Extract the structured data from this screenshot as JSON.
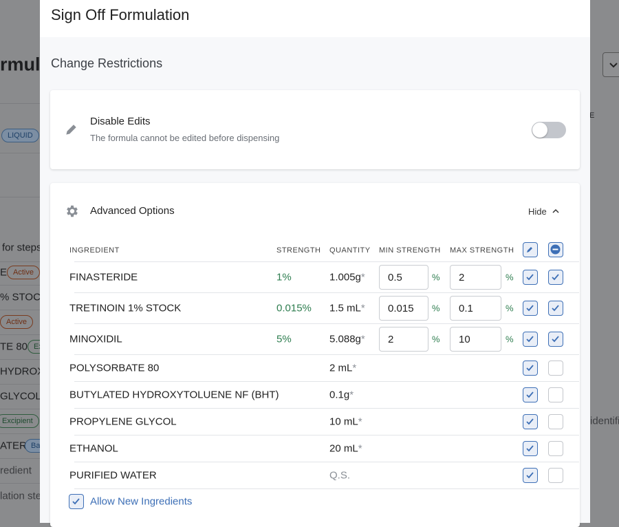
{
  "background": {
    "fragments": [
      {
        "text": "rmul",
        "kind": "heading"
      },
      {
        "text": "LIQUID",
        "kind": "badge-blue"
      },
      {
        "text": "for steps",
        "kind": "text"
      },
      {
        "text": "E",
        "kind": "text"
      },
      {
        "text": "Active",
        "kind": "badge-orange"
      },
      {
        "text": "% STOCK",
        "kind": "text"
      },
      {
        "text": "Active",
        "kind": "badge-orange"
      },
      {
        "text": "TE 80",
        "kind": "text"
      },
      {
        "text": "Ex",
        "kind": "badge-green"
      },
      {
        "text": "HYDROXY",
        "kind": "text"
      },
      {
        "text": "GLYCOL",
        "kind": "text"
      },
      {
        "text": "Excipient",
        "kind": "badge-green"
      },
      {
        "text": "ATER",
        "kind": "text"
      },
      {
        "text": "Ba",
        "kind": "badge-blue"
      },
      {
        "text": "redient",
        "kind": "muted"
      },
      {
        "text": "lation ste",
        "kind": "muted"
      },
      {
        "text": "E",
        "kind": "small"
      },
      {
        "text": "identifi",
        "kind": "muted"
      }
    ]
  },
  "modal": {
    "title": "Sign Off Formulation",
    "section_title": "Change Restrictions",
    "disable_edits": {
      "title": "Disable Edits",
      "description": "The formula cannot be edited before dispensing",
      "enabled": false
    },
    "advanced": {
      "title": "Advanced Options",
      "toggle": "Hide",
      "expanded": true
    },
    "table": {
      "headers": [
        "INGREDIENT",
        "STRENGTH",
        "QUANTITY",
        "MIN STRENGTH",
        "MAX STRENGTH"
      ],
      "required_mark": "*",
      "percent_sign": "%",
      "rows": [
        {
          "name": "FINASTERIDE",
          "strength": "1%",
          "quantity": "1.005g",
          "required": true,
          "min": "0.5",
          "max": "2",
          "edit": true,
          "remove": true
        },
        {
          "name": "TRETINOIN 1% STOCK",
          "strength": "0.015%",
          "quantity": "1.5 mL",
          "required": true,
          "min": "0.015",
          "max": "0.1",
          "edit": true,
          "remove": true
        },
        {
          "name": "MINOXIDIL",
          "strength": "5%",
          "quantity": "5.088g",
          "required": true,
          "min": "2",
          "max": "10",
          "edit": true,
          "remove": true
        },
        {
          "name": "POLYSORBATE 80",
          "quantity": "2 mL",
          "required": true,
          "edit": true,
          "remove": false
        },
        {
          "name": "BUTYLATED HYDROXYTOLUENE NF (BHT)",
          "quantity": "0.1g",
          "required": true,
          "edit": true,
          "remove": false
        },
        {
          "name": "PROPYLENE GLYCOL",
          "quantity": "10 mL",
          "required": true,
          "edit": true,
          "remove": false
        },
        {
          "name": "ETHANOL",
          "quantity": "20 mL",
          "required": true,
          "edit": true,
          "remove": false
        },
        {
          "name": "PURIFIED WATER",
          "quantity": "Q.S.",
          "required": false,
          "edit": true,
          "remove": false
        }
      ]
    },
    "allow_new": {
      "label": "Allow New Ingredients",
      "checked": true
    }
  }
}
